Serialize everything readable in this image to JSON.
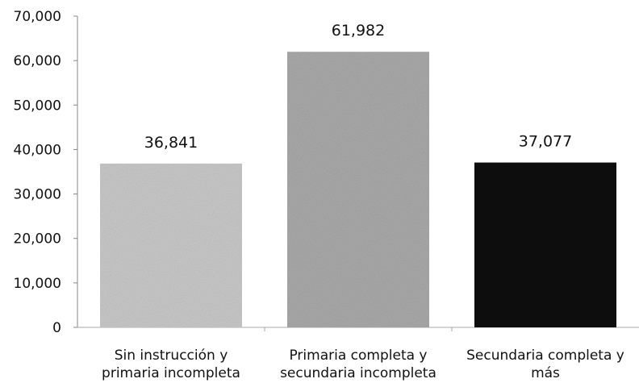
{
  "chart_data": {
    "type": "bar",
    "categories": [
      [
        "Sin instrucción y",
        "primaria incompleta"
      ],
      [
        "Primaria completa y",
        "secundaria incompleta"
      ],
      [
        "Secundaria completa y",
        "más"
      ]
    ],
    "values": [
      36841,
      61982,
      37077
    ],
    "value_labels": [
      "36,841",
      "61,982",
      "37,077"
    ],
    "bar_colors": [
      "#c8c8c8",
      "#a9a9a9",
      "#0d0d0d"
    ],
    "ylim": [
      0,
      70000
    ],
    "yticks": [
      0,
      10000,
      20000,
      30000,
      40000,
      50000,
      60000,
      70000
    ],
    "ytick_labels": [
      "0",
      "10,000",
      "20,000",
      "30,000",
      "40,000",
      "50,000",
      "60,000",
      "70,000"
    ],
    "grid": false,
    "legend": "none",
    "title": "",
    "xlabel": "",
    "ylabel": ""
  }
}
